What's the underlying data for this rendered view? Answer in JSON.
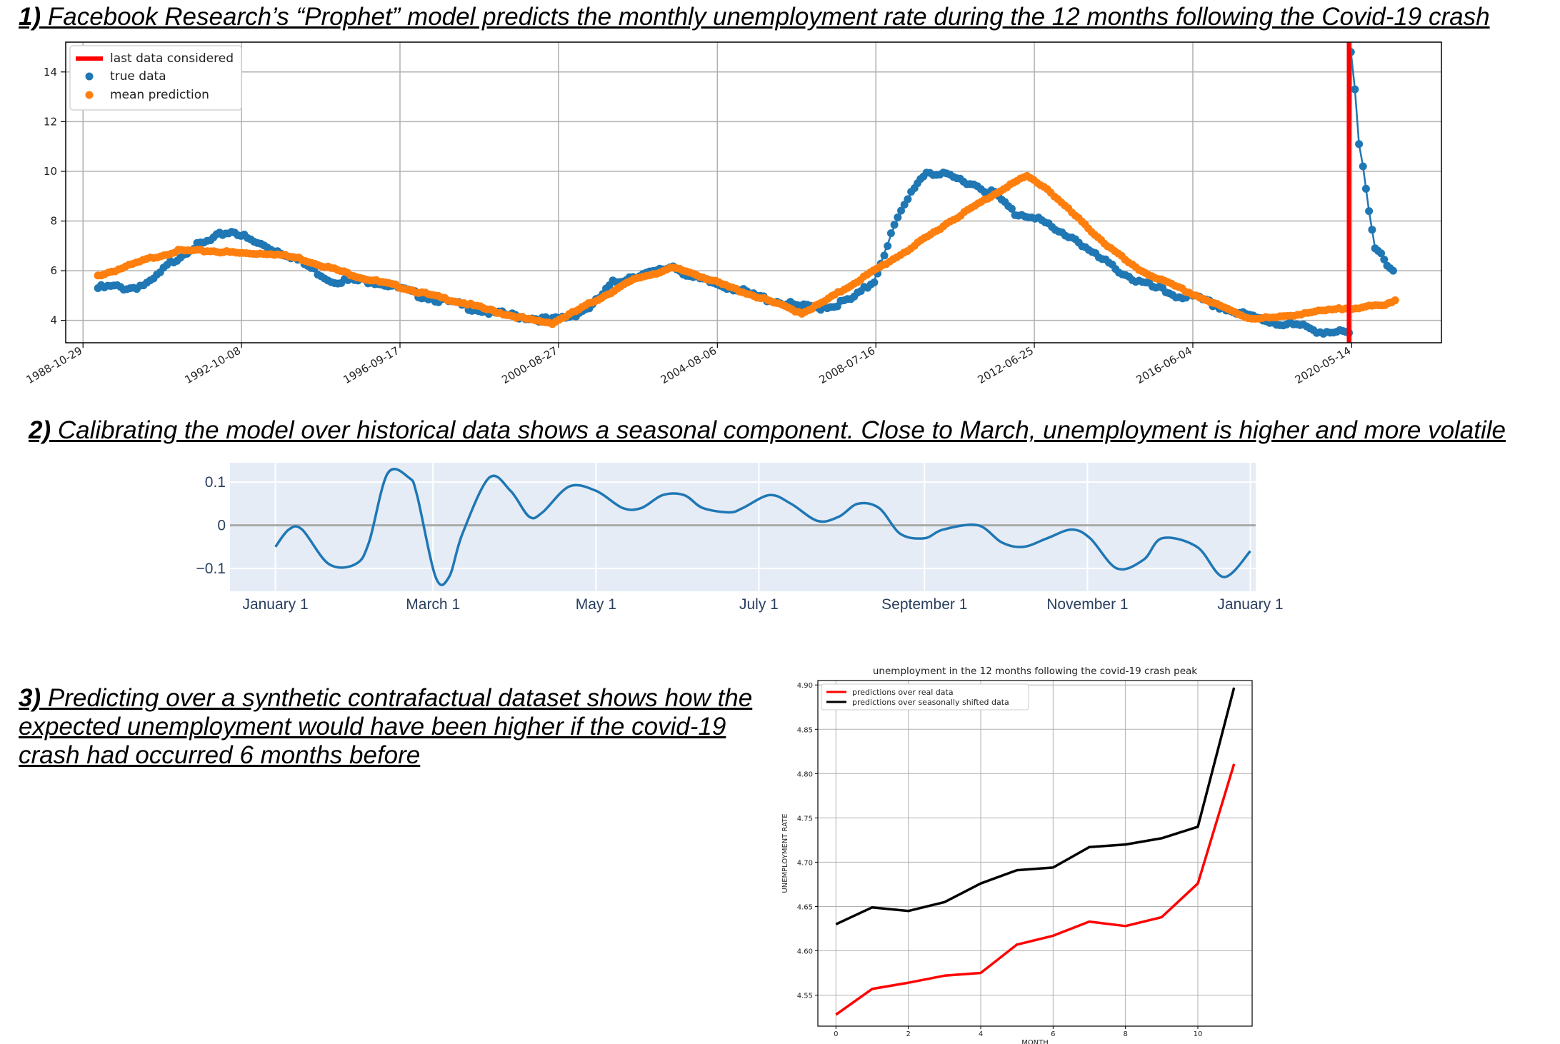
{
  "headings": {
    "h1_num": "1)",
    "h1_text": " Facebook Research’s “Prophet” model predicts the monthly unemployment rate during the 12 months following the Covid-19 crash",
    "h2_num": "2)",
    "h2_text": " Calibrating the model over historical data shows a seasonal component. Close to March, unemployment is higher and more volatile",
    "h3_num": "3)",
    "h3_text": " Predicting over a synthetic contrafactual dataset shows how the expected unemployment would have been higher if the covid-19 crash had occurred 6 months before"
  },
  "chart_data": [
    {
      "type": "scatter",
      "xticks": [
        "1988-10-29",
        "1992-10-08",
        "1996-09-17",
        "2000-08-27",
        "2004-08-06",
        "2008-07-16",
        "2012-06-25",
        "2016-06-04",
        "2020-05-14"
      ],
      "xtick_years": [
        1988.83,
        1992.77,
        1996.71,
        2000.65,
        2004.6,
        2008.54,
        2012.48,
        2016.42,
        2020.37
      ],
      "xlim": [
        1988.4,
        2022.6
      ],
      "yticks": [
        "4",
        "6",
        "8",
        "10",
        "12",
        "14"
      ],
      "ylim": [
        3.1,
        15.2
      ],
      "grid": true,
      "legend": {
        "position": "top-left",
        "entries": [
          "last data considered",
          "true data",
          "mean prediction"
        ]
      },
      "colors": {
        "last_data": "#ff0000",
        "true_data": "#1f77b4",
        "prediction": "#ff7f0e"
      },
      "last_data_year": 2020.3,
      "true_data_keys": [
        [
          1989.2,
          5.3
        ],
        [
          1989.6,
          5.35
        ],
        [
          1990.0,
          5.3
        ],
        [
          1990.5,
          5.5
        ],
        [
          1991.0,
          6.3
        ],
        [
          1991.5,
          6.9
        ],
        [
          1992.0,
          7.2
        ],
        [
          1992.3,
          7.5
        ],
        [
          1992.6,
          7.6
        ],
        [
          1993.0,
          7.2
        ],
        [
          1993.5,
          6.9
        ],
        [
          1994.0,
          6.6
        ],
        [
          1994.5,
          6.1
        ],
        [
          1995.0,
          5.6
        ],
        [
          1995.5,
          5.6
        ],
        [
          1996.0,
          5.6
        ],
        [
          1996.5,
          5.4
        ],
        [
          1997.0,
          5.1
        ],
        [
          1997.5,
          4.9
        ],
        [
          1998.0,
          4.7
        ],
        [
          1998.5,
          4.5
        ],
        [
          1999.0,
          4.3
        ],
        [
          1999.5,
          4.2
        ],
        [
          2000.0,
          4.1
        ],
        [
          2000.5,
          4.0
        ],
        [
          2001.0,
          4.2
        ],
        [
          2001.5,
          4.6
        ],
        [
          2002.0,
          5.5
        ],
        [
          2002.5,
          5.8
        ],
        [
          2003.0,
          5.9
        ],
        [
          2003.5,
          6.2
        ],
        [
          2004.0,
          5.7
        ],
        [
          2004.5,
          5.5
        ],
        [
          2005.0,
          5.3
        ],
        [
          2005.5,
          5.0
        ],
        [
          2006.0,
          4.8
        ],
        [
          2006.5,
          4.6
        ],
        [
          2007.0,
          4.5
        ],
        [
          2007.5,
          4.6
        ],
        [
          2008.0,
          4.9
        ],
        [
          2008.5,
          5.6
        ],
        [
          2009.0,
          7.8
        ],
        [
          2009.5,
          9.4
        ],
        [
          2009.8,
          10.0
        ],
        [
          2010.3,
          9.8
        ],
        [
          2010.8,
          9.6
        ],
        [
          2011.5,
          9.1
        ],
        [
          2012.0,
          8.3
        ],
        [
          2012.5,
          8.2
        ],
        [
          2013.0,
          7.6
        ],
        [
          2013.5,
          7.3
        ],
        [
          2014.0,
          6.6
        ],
        [
          2014.5,
          6.1
        ],
        [
          2015.0,
          5.6
        ],
        [
          2015.5,
          5.3
        ],
        [
          2016.0,
          5.0
        ],
        [
          2016.5,
          4.9
        ],
        [
          2017.0,
          4.6
        ],
        [
          2017.5,
          4.3
        ],
        [
          2018.0,
          4.1
        ],
        [
          2018.5,
          3.9
        ],
        [
          2019.0,
          3.8
        ],
        [
          2019.5,
          3.6
        ],
        [
          2020.0,
          3.5
        ],
        [
          2020.3,
          3.5
        ],
        [
          2020.35,
          14.8
        ],
        [
          2020.45,
          13.3
        ],
        [
          2020.55,
          11.1
        ],
        [
          2020.65,
          10.2
        ],
        [
          2020.8,
          8.4
        ],
        [
          2020.95,
          6.9
        ],
        [
          2021.1,
          6.7
        ],
        [
          2021.25,
          6.2
        ],
        [
          2021.4,
          6.0
        ]
      ],
      "prediction_keys": [
        [
          1989.2,
          5.8
        ],
        [
          1989.8,
          6.1
        ],
        [
          1990.5,
          6.5
        ],
        [
          1991.2,
          6.8
        ],
        [
          1992.0,
          6.8
        ],
        [
          1992.8,
          6.7
        ],
        [
          1993.5,
          6.7
        ],
        [
          1994.2,
          6.5
        ],
        [
          1995.0,
          6.1
        ],
        [
          1995.8,
          5.7
        ],
        [
          1996.6,
          5.4
        ],
        [
          1997.5,
          5.0
        ],
        [
          1998.3,
          4.7
        ],
        [
          1999.2,
          4.3
        ],
        [
          2000.0,
          4.0
        ],
        [
          2000.5,
          3.9
        ],
        [
          2001.0,
          4.3
        ],
        [
          2001.8,
          5.0
        ],
        [
          2002.6,
          5.7
        ],
        [
          2003.5,
          6.1
        ],
        [
          2004.0,
          5.9
        ],
        [
          2004.8,
          5.4
        ],
        [
          2005.5,
          5.0
        ],
        [
          2006.2,
          4.6
        ],
        [
          2006.7,
          4.3
        ],
        [
          2007.2,
          4.7
        ],
        [
          2008.0,
          5.5
        ],
        [
          2008.8,
          6.3
        ],
        [
          2009.5,
          7.0
        ],
        [
          2010.3,
          7.9
        ],
        [
          2011.0,
          8.6
        ],
        [
          2011.8,
          9.4
        ],
        [
          2012.3,
          9.8
        ],
        [
          2012.8,
          9.3
        ],
        [
          2013.5,
          8.2
        ],
        [
          2014.3,
          7.0
        ],
        [
          2015.0,
          6.1
        ],
        [
          2015.8,
          5.5
        ],
        [
          2016.5,
          5.0
        ],
        [
          2017.2,
          4.5
        ],
        [
          2017.8,
          4.1
        ],
        [
          2018.5,
          4.1
        ],
        [
          2019.2,
          4.3
        ],
        [
          2019.8,
          4.4
        ],
        [
          2020.3,
          4.5
        ],
        [
          2020.8,
          4.55
        ],
        [
          2021.2,
          4.6
        ],
        [
          2021.45,
          4.85
        ]
      ]
    },
    {
      "type": "line",
      "xticks": [
        "January  1",
        "March  1",
        "May  1",
        "July  1",
        "September  1",
        "November  1",
        "January  1"
      ],
      "xtick_days": [
        0,
        59,
        120,
        181,
        243,
        304,
        365
      ],
      "xlim": [
        -17,
        367
      ],
      "yticks": [
        "0.1",
        "0",
        "−0.1"
      ],
      "ytick_values": [
        0.1,
        0,
        -0.1
      ],
      "ylim": [
        -0.153,
        0.145
      ],
      "grid": true,
      "colors": {
        "line": "#1f77b4",
        "background": "#e5ecf6",
        "zero": "#aaaaaa"
      },
      "x": [
        0,
        5,
        10,
        20,
        30,
        35,
        42,
        50,
        53,
        60,
        65,
        70,
        80,
        88,
        95,
        100,
        110,
        120,
        130,
        137,
        145,
        153,
        160,
        170,
        175,
        185,
        193,
        203,
        211,
        218,
        226,
        234,
        243,
        250,
        263,
        272,
        280,
        289,
        298,
        305,
        315,
        325,
        332,
        345,
        355,
        365
      ],
      "y": [
        -0.05,
        -0.01,
        -0.01,
        -0.09,
        -0.09,
        -0.04,
        0.12,
        0.11,
        0.07,
        -0.12,
        -0.12,
        -0.02,
        0.11,
        0.08,
        0.02,
        0.03,
        0.09,
        0.08,
        0.04,
        0.04,
        0.07,
        0.07,
        0.04,
        0.03,
        0.04,
        0.07,
        0.05,
        0.01,
        0.02,
        0.05,
        0.04,
        -0.02,
        -0.03,
        -0.01,
        0.0,
        -0.04,
        -0.05,
        -0.03,
        -0.01,
        -0.03,
        -0.1,
        -0.08,
        -0.03,
        -0.05,
        -0.12,
        -0.06
      ]
    },
    {
      "type": "line",
      "title": "unemployment in the 12 months following the covid-19 crash peak",
      "xlabel": "MONTH",
      "ylabel": "UNEMPLOYMENT RATE",
      "xlim": [
        -0.5,
        11.5
      ],
      "ylim": [
        4.515,
        4.905
      ],
      "xticks": [
        0,
        2,
        4,
        6,
        8,
        10
      ],
      "yticks": [
        "4.55",
        "4.60",
        "4.65",
        "4.70",
        "4.75",
        "4.80",
        "4.85",
        "4.90"
      ],
      "grid": true,
      "legend": {
        "position": "top-left"
      },
      "x": [
        0,
        1,
        2,
        3,
        4,
        5,
        6,
        7,
        8,
        9,
        10,
        11
      ],
      "series": [
        {
          "name": "predictions over real data",
          "color": "#ff0000",
          "values": [
            4.528,
            4.557,
            4.564,
            4.572,
            4.575,
            4.607,
            4.617,
            4.633,
            4.628,
            4.638,
            4.676,
            4.811
          ]
        },
        {
          "name": "predictions over seasonally shifted data",
          "color": "#000000",
          "values": [
            4.63,
            4.649,
            4.645,
            4.655,
            4.676,
            4.691,
            4.694,
            4.717,
            4.72,
            4.727,
            4.74,
            4.897
          ]
        }
      ]
    }
  ]
}
